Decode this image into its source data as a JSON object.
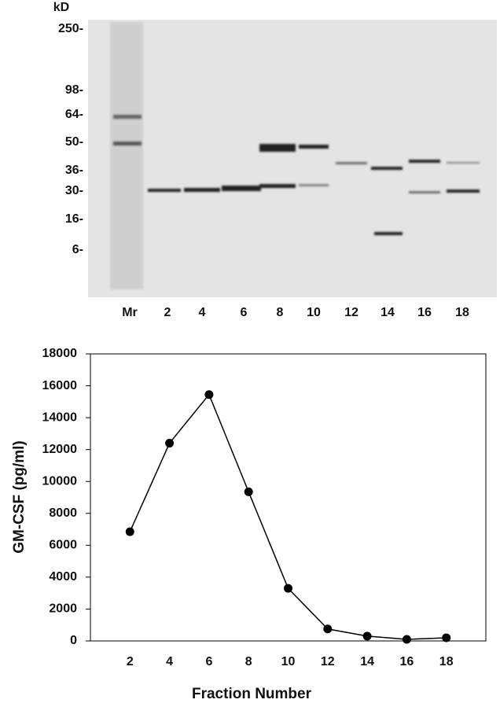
{
  "gel": {
    "unit": "kD",
    "markers": [
      "250-",
      "98-",
      "64-",
      "50-",
      "36-",
      "30-",
      "16-",
      "6-"
    ],
    "lanes": [
      "Mr",
      "2",
      "4",
      "6",
      "8",
      "10",
      "12",
      "14",
      "16",
      "18"
    ]
  },
  "chart_data": {
    "type": "line",
    "x_label": "Fraction Number",
    "y_label": "GM-CSF (pg/ml)",
    "x": [
      2,
      4,
      6,
      8,
      10,
      12,
      14,
      16,
      18
    ],
    "values": [
      6850,
      12400,
      15450,
      9350,
      3300,
      750,
      300,
      100,
      200
    ],
    "color": "#000000",
    "xlim": [
      0,
      20
    ],
    "xticks": [
      2,
      4,
      6,
      8,
      10,
      12,
      14,
      16,
      18
    ],
    "ylim": [
      0,
      18000
    ],
    "yticks": [
      0,
      2000,
      4000,
      6000,
      8000,
      10000,
      12000,
      14000,
      16000,
      18000
    ],
    "grid": false
  }
}
